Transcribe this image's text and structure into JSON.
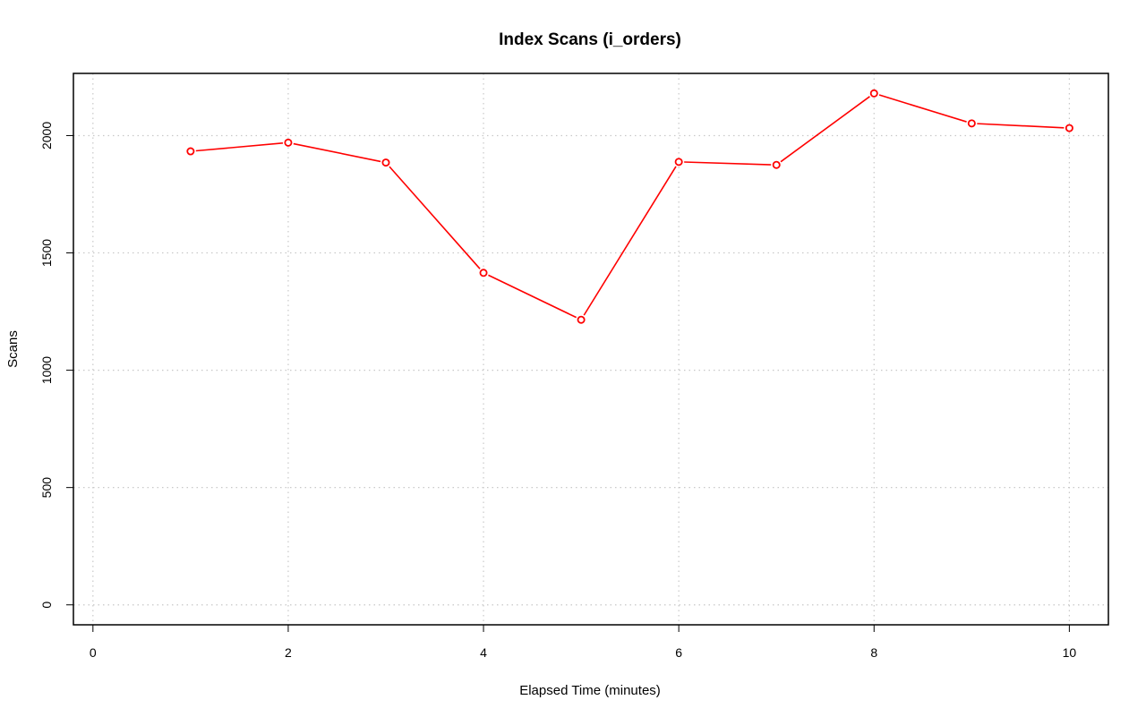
{
  "chart_data": {
    "type": "line",
    "title": "Index Scans (i_orders)",
    "xlabel": "Elapsed Time (minutes)",
    "ylabel": "Scans",
    "xlim": [
      -0.2,
      10.4
    ],
    "ylim": [
      -85,
      2265
    ],
    "x_ticks": [
      0,
      2,
      4,
      6,
      8,
      10
    ],
    "y_ticks": [
      0,
      500,
      1000,
      1500,
      2000
    ],
    "grid": true,
    "series": [
      {
        "color": "#ff0000",
        "marker": "open-circle",
        "x": [
          1,
          2,
          3,
          4,
          5,
          6,
          7,
          8,
          9,
          10
        ],
        "y": [
          1933,
          1970,
          1885,
          1415,
          1215,
          1888,
          1875,
          2180,
          2052,
          2032
        ]
      }
    ]
  }
}
